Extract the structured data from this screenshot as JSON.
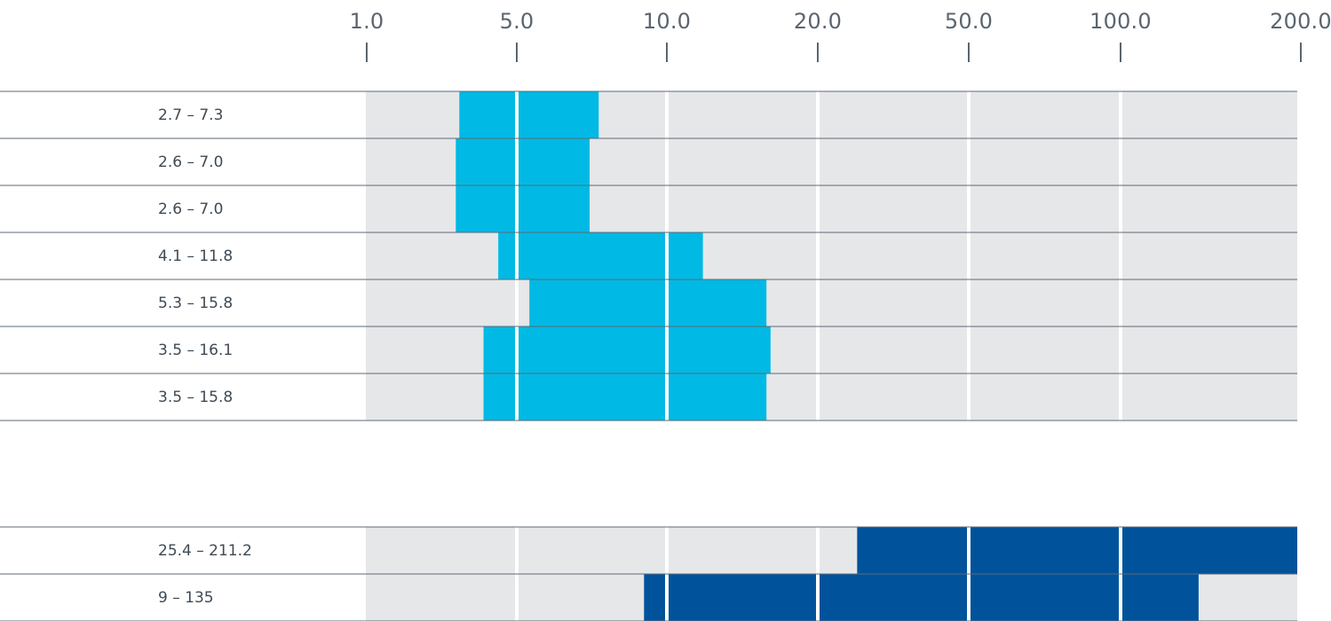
{
  "chart_data": {
    "type": "bar",
    "x_scale": "log",
    "x_ticks": [
      "1.0",
      "5.0",
      "10.0",
      "20.0",
      "50.0",
      "100.0",
      "200.0"
    ],
    "grid": true,
    "groups": [
      {
        "color": "#00b9e4",
        "rows": [
          {
            "label": "2.7 – 7.3",
            "start": 2.7,
            "end": 7.3
          },
          {
            "label": "2.6 – 7.0",
            "start": 2.6,
            "end": 7.0
          },
          {
            "label": "2.6 – 7.0",
            "start": 2.6,
            "end": 7.0
          },
          {
            "label": "4.1 – 11.8",
            "start": 4.1,
            "end": 11.8
          },
          {
            "label": "5.3 – 15.8",
            "start": 5.3,
            "end": 15.8
          },
          {
            "label": "3.5 – 16.1",
            "start": 3.5,
            "end": 16.1
          },
          {
            "label": "3.5 – 15.8",
            "start": 3.5,
            "end": 15.8
          }
        ]
      },
      {
        "color": "#00539b",
        "rows": [
          {
            "label": "25.4 – 211.2",
            "start": 25.4,
            "end": 211.2
          },
          {
            "label": "9 – 135",
            "start": 9,
            "end": 135
          }
        ]
      }
    ]
  }
}
